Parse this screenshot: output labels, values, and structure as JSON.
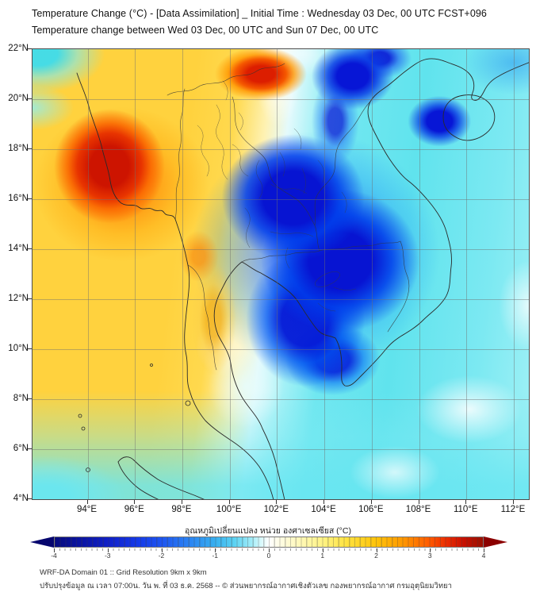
{
  "header": {
    "title_line1": "Temperature Change (°C) - [Data Assimilation] _ Initial Time : Wednesday 03 Dec, 00 UTC FCST+096",
    "title_line2": "Temperature change between Wed 03 Dec, 00 UTC and Sun 07 Dec, 00 UTC"
  },
  "map": {
    "lat_labels": [
      "22°N",
      "20°N",
      "18°N",
      "16°N",
      "14°N",
      "12°N",
      "10°N",
      "8°N",
      "6°N",
      "4°N"
    ],
    "lon_labels": [
      "94°E",
      "96°E",
      "98°E",
      "100°E",
      "102°E",
      "104°E",
      "106°E",
      "108°E",
      "110°E",
      "112°E"
    ]
  },
  "colorbar": {
    "label": "อุณหภูมิเปลี่ยนแปลง หน่วย องศาเซลเซียส (°C)",
    "tick_labels": [
      "-4",
      "-3",
      "-2",
      "-1",
      "0",
      "1",
      "2",
      "3",
      "4"
    ],
    "min": -4,
    "max": 4,
    "colors": {
      "cold_end": "#06066e",
      "zero": "#ffffff",
      "warm_end": "#8b0000"
    }
  },
  "footer": {
    "line1": "WRF-DA Domain 01 :: Grid Resolution 9km x 9km",
    "line2": "ปรับปรุงข้อมูล ณ เวลา 07:00น. วัน พ. ที่ 03 ธ.ค. 2568 -- © ส่วนพยากรณ์อากาศเชิงตัวเลข กองพยากรณ์อากาศ กรมอุตุนิยมวิทยา"
  },
  "chart_data": {
    "type": "heatmap",
    "title": "Temperature Change (°C) - [Data Assimilation] _ Initial Time : Wednesday 03 Dec, 00 UTC FCST+096",
    "subtitle": "Temperature change between Wed 03 Dec, 00 UTC and Sun 07 Dec, 00 UTC",
    "x_axis": {
      "label_ticks": [
        "94°E",
        "96°E",
        "98°E",
        "100°E",
        "102°E",
        "104°E",
        "106°E",
        "108°E",
        "110°E",
        "112°E"
      ],
      "range_deg_east": [
        92,
        112.7
      ]
    },
    "y_axis": {
      "label_ticks": [
        "22°N",
        "20°N",
        "18°N",
        "16°N",
        "14°N",
        "12°N",
        "10°N",
        "8°N",
        "6°N",
        "4°N"
      ],
      "range_deg_north": [
        4,
        22
      ]
    },
    "grid": true,
    "colorbar": {
      "label": "อุณหภูมิเปลี่ยนแปลง หน่วย องศาเซลเซียส (°C)",
      "ticks": [
        -4,
        -3,
        -2,
        -1,
        0,
        1,
        2,
        3,
        4
      ],
      "units": "°C"
    },
    "features": [
      {
        "region": "western Myanmar (95-97°E, 15-19°N)",
        "value_c": 3.5,
        "sign": "warming"
      },
      {
        "region": "northern Laos / upper Thailand (101-103°E, 20-22°N)",
        "value_c": 3.0,
        "sign": "warming"
      },
      {
        "region": "Thailand & Andaman Sea (94-100°E, 8-20°N)",
        "value_c": 1.5,
        "sign": "warming"
      },
      {
        "region": "northern Vietnam (104-106°E, 20-22°N)",
        "value_c": -3.5,
        "sign": "cooling"
      },
      {
        "region": "Laos / Cambodia / southern Vietnam (101-107°E, 8-18°N)",
        "value_c": -3.5,
        "sign": "cooling"
      },
      {
        "region": "Hainan island (109-111°E, 18-20°N)",
        "value_c": -3.5,
        "sign": "cooling"
      },
      {
        "region": "South China Sea (106-112°E)",
        "value_c": -1.5,
        "sign": "cooling"
      },
      {
        "region": "Gulf of Thailand and far south (4-8°N)",
        "value_c": -0.5,
        "sign": "slight cooling"
      }
    ]
  }
}
